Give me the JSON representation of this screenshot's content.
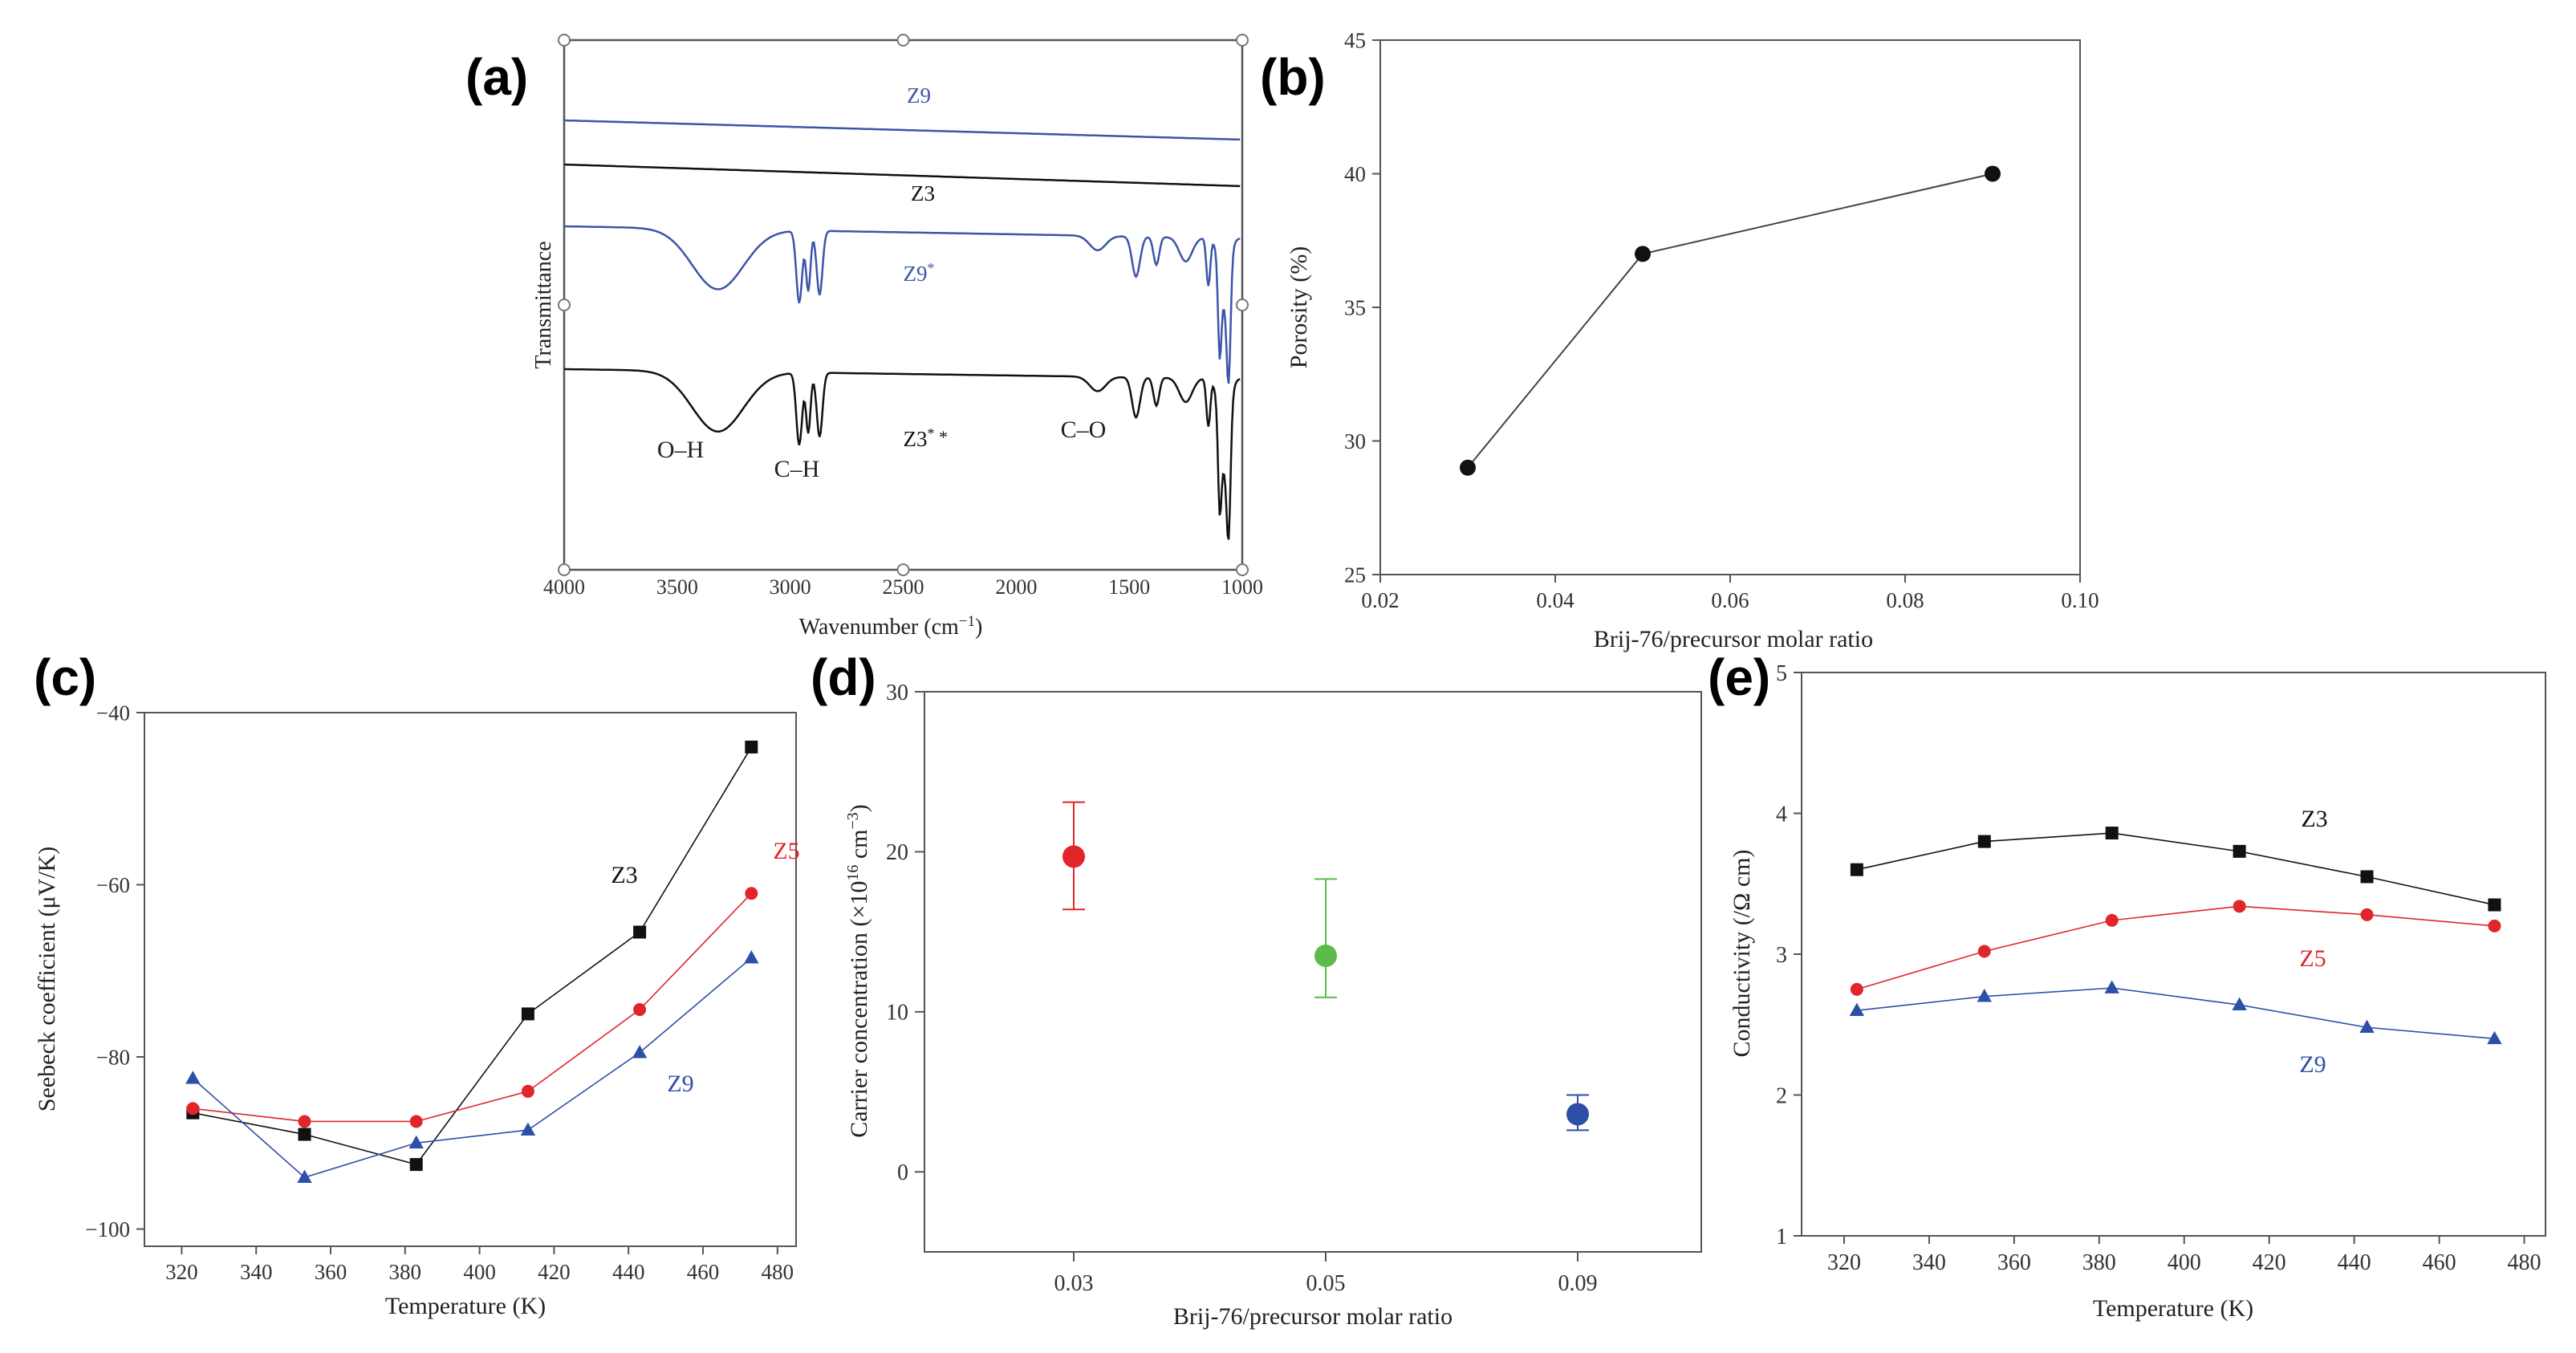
{
  "colors": {
    "black": "#111111",
    "red": "#e0262b",
    "blue": "#2e4fa8",
    "green": "#5cbb4a",
    "ftir_blue": "#3b55a8"
  },
  "chart_data": [
    {
      "id": "a",
      "panel_label": "(a)",
      "type": "line",
      "title": "",
      "xlabel": "Wavenumber (cm",
      "xlabel_sup": "−1",
      "xlabel_end": ")",
      "ylabel": "Transmittance",
      "xlim": [
        4000,
        1000
      ],
      "xticks": [
        4000,
        3500,
        3000,
        2500,
        2000,
        1500,
        1000
      ],
      "xtick_labels": [
        "4000",
        "3500",
        "3000",
        "2500",
        "2000",
        "1500",
        "1000"
      ],
      "series": [
        {
          "name": "Z9",
          "label": "Z9",
          "label_sup": "",
          "color": "#3b55a8"
        },
        {
          "name": "Z3",
          "label": "Z3",
          "label_sup": "",
          "color": "#111111"
        },
        {
          "name": "Z9*",
          "label": "Z9",
          "label_sup": "*",
          "color": "#3b55a8"
        },
        {
          "name": "Z3*",
          "label": "Z3",
          "label_sup": "*",
          "color": "#111111"
        }
      ],
      "annotations": [
        "O–H",
        "C–H",
        "C–O"
      ]
    },
    {
      "id": "b",
      "panel_label": "(b)",
      "type": "line",
      "title": "",
      "xlabel": "Brij-76/precursor molar ratio",
      "ylabel": "Porosity (%)",
      "xlim": [
        0.02,
        0.1
      ],
      "ylim": [
        25,
        45
      ],
      "xticks": [
        0.02,
        0.04,
        0.06,
        0.08,
        0.1
      ],
      "xtick_labels": [
        "0.02",
        "0.04",
        "0.06",
        "0.08",
        "0.10"
      ],
      "yticks": [
        25,
        30,
        35,
        40,
        45
      ],
      "ytick_labels": [
        "25",
        "30",
        "35",
        "40",
        "45"
      ],
      "x": [
        0.03,
        0.05,
        0.09
      ],
      "values": [
        29,
        37,
        40
      ]
    },
    {
      "id": "c",
      "panel_label": "(c)",
      "type": "line",
      "title": "",
      "xlabel": "Temperature (K)",
      "ylabel": "Seebeck coefficient (μV/K)",
      "xlim": [
        310,
        485
      ],
      "ylim": [
        -102,
        -40
      ],
      "xticks": [
        320,
        340,
        360,
        380,
        400,
        420,
        440,
        460,
        480
      ],
      "xtick_labels": [
        "320",
        "340",
        "360",
        "380",
        "400",
        "420",
        "440",
        "460",
        "480"
      ],
      "yticks": [
        -100,
        -80,
        -60,
        -40
      ],
      "ytick_labels": [
        "−100",
        "−80",
        "−60",
        "−40"
      ],
      "x": [
        323,
        353,
        383,
        413,
        443,
        473
      ],
      "series": [
        {
          "name": "Z3",
          "values": [
            -86.5,
            -89,
            -92.5,
            -75,
            -65.5,
            -44
          ],
          "color": "#111111",
          "marker": "square"
        },
        {
          "name": "Z5",
          "values": [
            -86,
            -87.5,
            -87.5,
            -84,
            -74.5,
            -61
          ],
          "color": "#e0262b",
          "marker": "circle"
        },
        {
          "name": "Z9",
          "values": [
            -82.5,
            -94,
            -90,
            -88.5,
            -79.5,
            -68.5
          ],
          "color": "#2e4fa8",
          "marker": "triangle"
        }
      ]
    },
    {
      "id": "d",
      "panel_label": "(d)",
      "type": "scatter",
      "title": "",
      "xlabel": "Brij-76/precursor molar ratio",
      "ylabel": "Carrier concentration (×10",
      "ylabel_sup": "16",
      "ylabel_mid": " cm",
      "ylabel_sup2": "−3",
      "ylabel_end": ")",
      "ylim": [
        -5,
        30
      ],
      "categories": [
        "0.03",
        "0.05",
        "0.09"
      ],
      "yticks": [
        0,
        10,
        20,
        30
      ],
      "ytick_labels": [
        "0",
        "10",
        "20",
        "30"
      ],
      "values": [
        19.7,
        13.5,
        3.6
      ],
      "err_low": [
        16.4,
        10.9,
        2.6
      ],
      "err_high": [
        23.1,
        18.3,
        4.8
      ],
      "colors": [
        "#e0262b",
        "#5cbb4a",
        "#2e4fa8"
      ]
    },
    {
      "id": "e",
      "panel_label": "(e)",
      "type": "line",
      "title": "",
      "xlabel": "Temperature (K)",
      "ylabel": "Conductivity (/Ω cm)",
      "xlim": [
        310,
        485
      ],
      "ylim": [
        1,
        5
      ],
      "xticks": [
        320,
        340,
        360,
        380,
        400,
        420,
        440,
        460,
        480
      ],
      "xtick_labels": [
        "320",
        "340",
        "360",
        "380",
        "400",
        "420",
        "440",
        "460",
        "480"
      ],
      "yticks": [
        1,
        2,
        3,
        4,
        5
      ],
      "ytick_labels": [
        "1",
        "2",
        "3",
        "4",
        "5"
      ],
      "x": [
        323,
        353,
        383,
        413,
        443,
        473
      ],
      "series": [
        {
          "name": "Z3",
          "values": [
            3.6,
            3.8,
            3.86,
            3.73,
            3.55,
            3.35
          ],
          "color": "#111111",
          "marker": "square"
        },
        {
          "name": "Z5",
          "values": [
            2.75,
            3.02,
            3.24,
            3.34,
            3.28,
            3.2
          ],
          "color": "#e0262b",
          "marker": "circle"
        },
        {
          "name": "Z9",
          "values": [
            2.6,
            2.7,
            2.76,
            2.64,
            2.48,
            2.4
          ],
          "color": "#2e4fa8",
          "marker": "triangle"
        }
      ]
    }
  ]
}
